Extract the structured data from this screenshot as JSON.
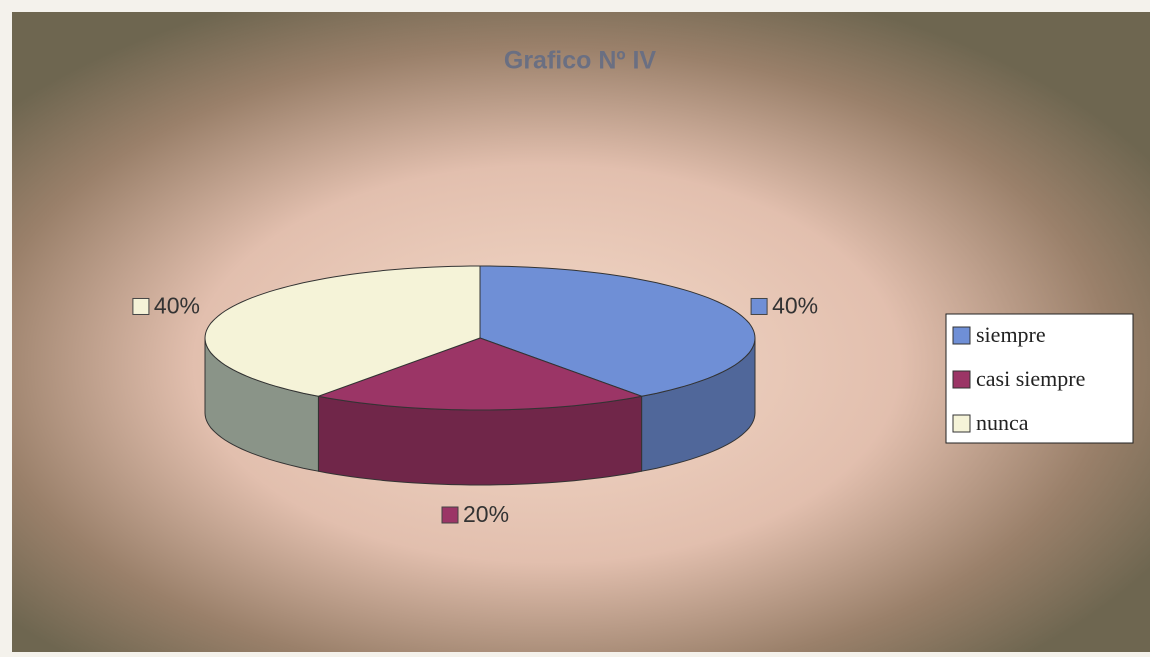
{
  "chart_data": {
    "type": "pie",
    "title": "Grafico Nº IV",
    "categories": [
      "siempre",
      "casi siempre",
      "nunca"
    ],
    "values": [
      40,
      20,
      40
    ],
    "value_labels": [
      "40%",
      "20%",
      "40%"
    ],
    "colors": [
      "#6f8fd6",
      "#9b3566",
      "#f5f3d8"
    ],
    "legend": "right"
  }
}
